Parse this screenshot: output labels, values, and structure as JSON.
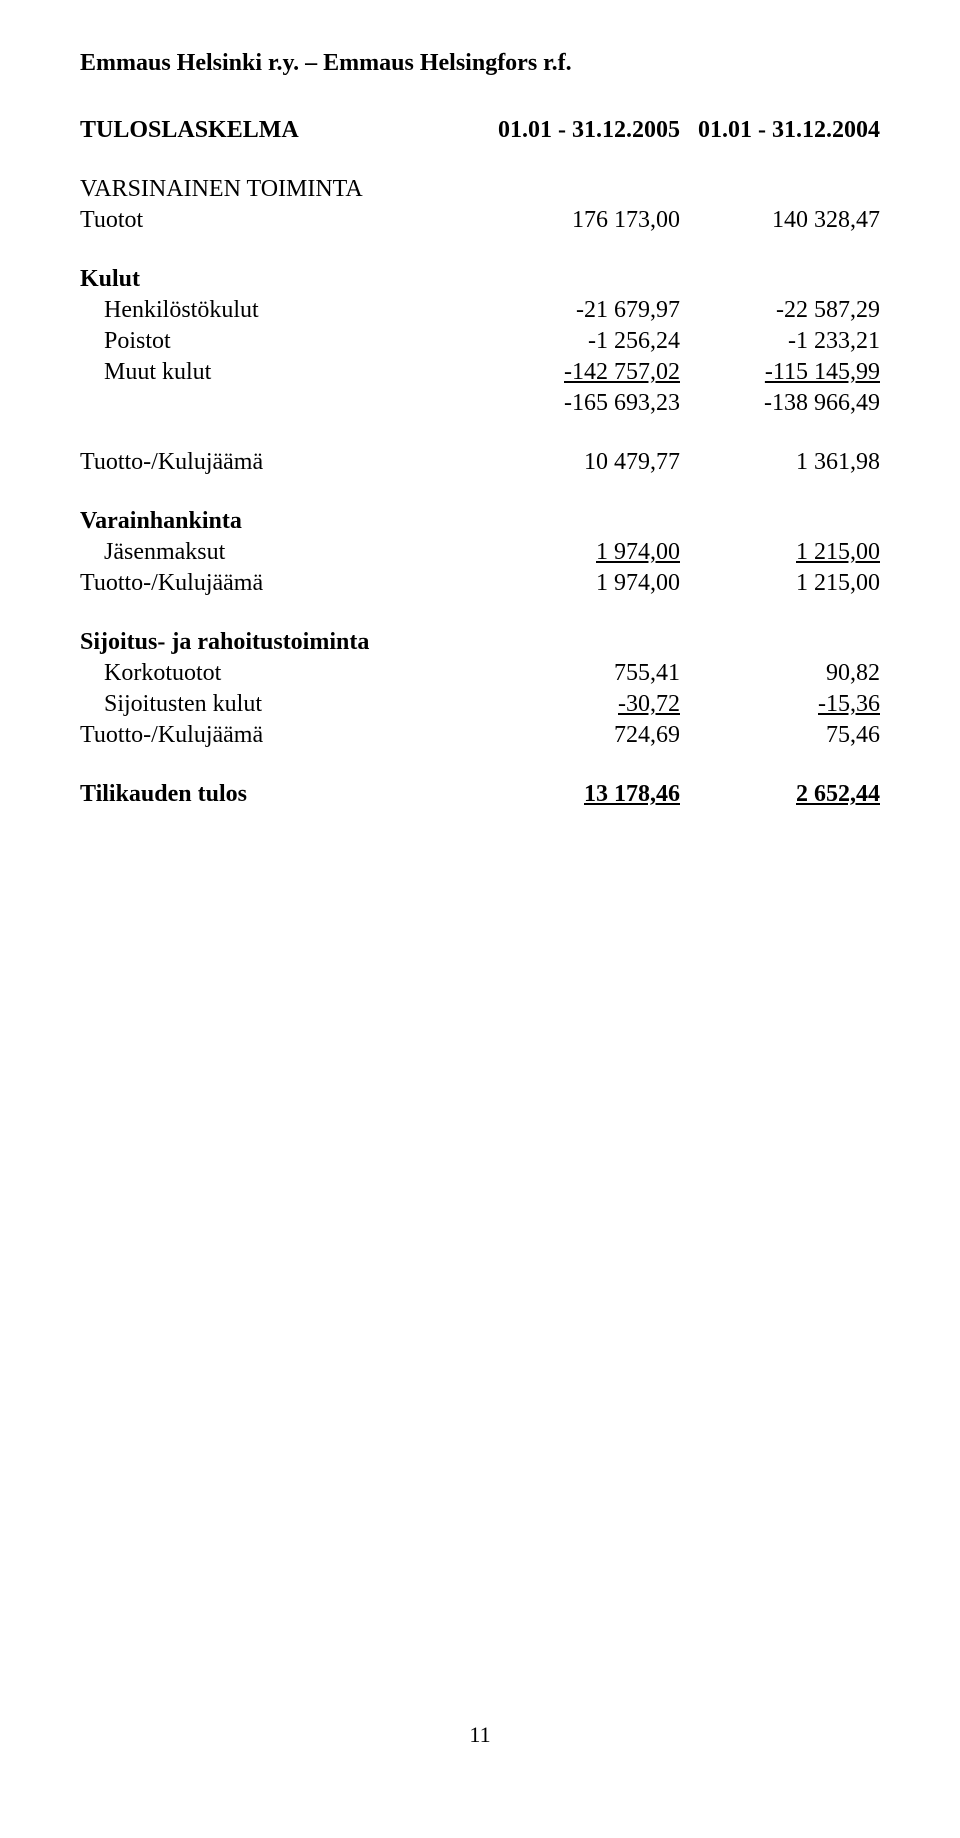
{
  "title": "Emmaus Helsinki r.y. – Emmaus Helsingfors r.f.",
  "header": {
    "label": "TULOSLASKELMA",
    "period1": "01.01 - 31.12.2005",
    "period2": "01.01 - 31.12.2004"
  },
  "sections": {
    "varsinainen": "VARSINAINEN TOIMINTA",
    "tuotot": {
      "label": "Tuotot",
      "v1": "176 173,00",
      "v2": "140 328,47"
    },
    "kulut_label": "Kulut",
    "henkilosto": {
      "label": "Henkilöstökulut",
      "v1": "-21 679,97",
      "v2": "-22 587,29"
    },
    "poistot": {
      "label": "Poistot",
      "v1": "-1 256,24",
      "v2": "-1 233,21"
    },
    "muut": {
      "label": "Muut kulut",
      "v1": "-142 757,02",
      "v2": "-115 145,99"
    },
    "kulut_sum": {
      "v1": "-165 693,23",
      "v2": "-138 966,49"
    },
    "tk1": {
      "label": "Tuotto-/Kulujäämä",
      "v1": "10 479,77",
      "v2": "1 361,98"
    },
    "varainhankinta": "Varainhankinta",
    "jasenmaksut": {
      "label": "Jäsenmaksut",
      "v1": "1 974,00",
      "v2": "1 215,00"
    },
    "tk2": {
      "label": "Tuotto-/Kulujäämä",
      "v1": "1 974,00",
      "v2": "1 215,00"
    },
    "sijoitus": "Sijoitus- ja rahoitustoiminta",
    "korkotuotot": {
      "label": "Korkotuotot",
      "v1": "755,41",
      "v2": "90,82"
    },
    "sijk": {
      "label": "Sijoitusten kulut",
      "v1": "-30,72",
      "v2": "-15,36"
    },
    "tk3": {
      "label": "Tuotto-/Kulujäämä",
      "v1": "724,69",
      "v2": "75,46"
    },
    "tulos": {
      "label": "Tilikauden tulos",
      "v1": "13 178,46",
      "v2": "2 652,44"
    }
  },
  "pageNumber": "11"
}
